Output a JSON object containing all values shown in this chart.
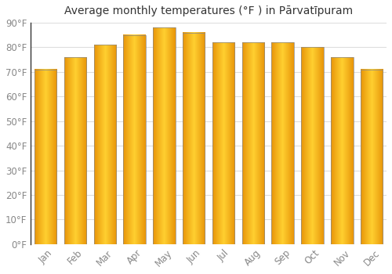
{
  "title": "Average monthly temperatures (°F ) in Pārvatīpuram",
  "months": [
    "Jan",
    "Feb",
    "Mar",
    "Apr",
    "May",
    "Jun",
    "Jul",
    "Aug",
    "Sep",
    "Oct",
    "Nov",
    "Dec"
  ],
  "values": [
    71,
    76,
    81,
    85,
    88,
    86,
    82,
    82,
    82,
    80,
    76,
    71
  ],
  "bar_color_bottom": "#F0A010",
  "bar_color_mid": "#FFD040",
  "bar_color_top": "#FDB827",
  "background_color": "#FFFFFF",
  "grid_color": "#DDDDDD",
  "ylim": [
    0,
    90
  ],
  "yticks": [
    0,
    10,
    20,
    30,
    40,
    50,
    60,
    70,
    80,
    90
  ],
  "ytick_labels": [
    "0°F",
    "10°F",
    "20°F",
    "30°F",
    "40°F",
    "50°F",
    "60°F",
    "70°F",
    "80°F",
    "90°F"
  ],
  "title_fontsize": 10,
  "tick_fontsize": 8.5,
  "bar_width": 0.75
}
